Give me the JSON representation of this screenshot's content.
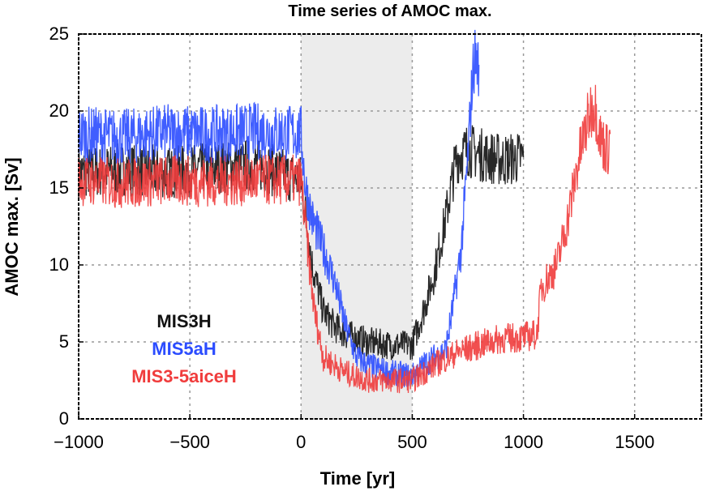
{
  "chart_data": {
    "type": "line",
    "title": "Time series of AMOC max.",
    "xlabel": "Time [yr]",
    "ylabel": "AMOC max. [Sv]",
    "xlim": [
      -1000,
      1800
    ],
    "ylim": [
      0,
      25
    ],
    "xticks": [
      -1000,
      -500,
      0,
      500,
      1000,
      1500
    ],
    "xtick_labels": [
      "−1000",
      "−500",
      "0",
      "500",
      "1000",
      "1500"
    ],
    "yticks": [
      0,
      5,
      10,
      15,
      20,
      25
    ],
    "ytick_labels": [
      "0",
      "5",
      "10",
      "15",
      "20",
      "25"
    ],
    "grid": true,
    "shaded_region": [
      0,
      500
    ],
    "shade_color": "#ececec",
    "legend_placement": "lower-left",
    "series": [
      {
        "name": "MIS3H",
        "color": "#111111",
        "x": [
          -1000,
          -800,
          -600,
          -400,
          -200,
          0,
          50,
          100,
          150,
          200,
          300,
          400,
          500,
          550,
          600,
          650,
          680,
          700,
          750,
          800,
          900,
          1000
        ],
        "y": [
          16,
          16.2,
          16,
          16.3,
          16.5,
          15.5,
          10,
          7,
          6,
          5.5,
          5,
          4.8,
          4.8,
          7,
          9.5,
          13,
          15.5,
          17,
          17.5,
          17.2,
          16.8,
          17
        ]
      },
      {
        "name": "MIS5aH",
        "color": "#2b4cff",
        "x": [
          -1000,
          -800,
          -600,
          -400,
          -200,
          0,
          20,
          50,
          100,
          150,
          200,
          250,
          300,
          400,
          500,
          550,
          600,
          650,
          680,
          720,
          750,
          770,
          780,
          800
        ],
        "y": [
          18.5,
          18.3,
          18.6,
          18.5,
          18.7,
          18.5,
          15,
          13,
          11,
          9,
          6,
          4,
          3.5,
          3,
          2.8,
          3.5,
          4,
          4.5,
          7,
          11,
          17,
          22,
          23.5,
          23
        ]
      },
      {
        "name": "MIS3-5aiceH",
        "color": "#f03c3c",
        "x": [
          -1000,
          -800,
          -600,
          -400,
          -200,
          0,
          30,
          60,
          100,
          200,
          300,
          400,
          500,
          600,
          700,
          800,
          900,
          1000,
          1060,
          1080,
          1150,
          1200,
          1250,
          1300,
          1320,
          1350,
          1380,
          1390
        ],
        "y": [
          15.5,
          15.3,
          15.5,
          15.4,
          15.5,
          15.5,
          11,
          7,
          4,
          3,
          2.5,
          2.5,
          2.5,
          3.5,
          4.3,
          4.8,
          5.2,
          5.3,
          5.5,
          8.5,
          10,
          13,
          17,
          20,
          20.5,
          18,
          17.5,
          18.5
        ]
      }
    ]
  }
}
